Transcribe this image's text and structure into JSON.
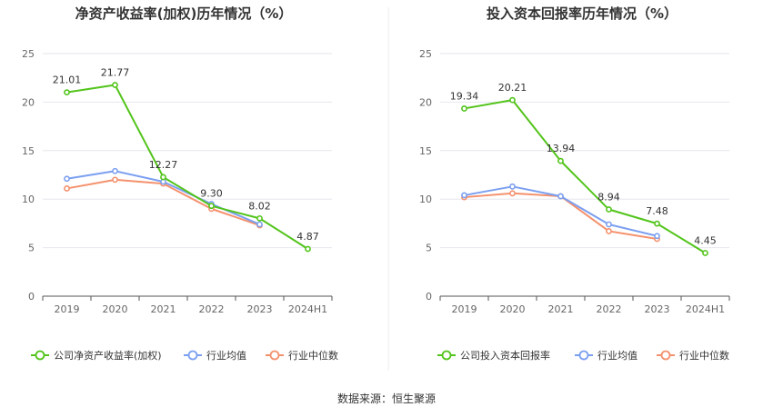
{
  "source": "数据来源：恒生聚源",
  "colors": {
    "company": "#52c41a",
    "avg": "#7b9ff0",
    "median": "#f4916d",
    "grid": "#e6e6ee",
    "axis": "#555555"
  },
  "chart_data": [
    {
      "type": "line",
      "title": "净资产收益率(加权)历年情况（%）",
      "categories": [
        "2019",
        "2020",
        "2021",
        "2022",
        "2023",
        "2024H1"
      ],
      "ylim": [
        0,
        25
      ],
      "yticks": [
        "0",
        "5",
        "10",
        "15",
        "20",
        "25"
      ],
      "grid": true,
      "legend_position": "bottom",
      "series": [
        {
          "name": "公司净资产收益率(加权)",
          "values": [
            21.01,
            21.77,
            12.27,
            9.3,
            8.02,
            4.87
          ],
          "labels": [
            "21.01",
            "21.77",
            "12.27",
            "9.30",
            "8.02",
            "4.87"
          ]
        },
        {
          "name": "行业均值",
          "values": [
            12.1,
            12.9,
            11.8,
            9.5,
            7.4,
            null
          ]
        },
        {
          "name": "行业中位数",
          "values": [
            11.1,
            12.0,
            11.6,
            9.0,
            7.3,
            null
          ]
        }
      ]
    },
    {
      "type": "line",
      "title": "投入资本回报率历年情况（%）",
      "categories": [
        "2019",
        "2020",
        "2021",
        "2022",
        "2023",
        "2024H1"
      ],
      "ylim": [
        0,
        25
      ],
      "yticks": [
        "0",
        "5",
        "10",
        "15",
        "20",
        "25"
      ],
      "grid": true,
      "legend_position": "bottom",
      "series": [
        {
          "name": "公司投入资本回报率",
          "values": [
            19.34,
            20.21,
            13.94,
            8.94,
            7.48,
            4.45
          ],
          "labels": [
            "19.34",
            "20.21",
            "13.94",
            "8.94",
            "7.48",
            "4.45"
          ]
        },
        {
          "name": "行业均值",
          "values": [
            10.4,
            11.3,
            10.3,
            7.4,
            6.2,
            null
          ]
        },
        {
          "name": "行业中位数",
          "values": [
            10.2,
            10.6,
            10.3,
            6.7,
            5.9,
            null
          ]
        }
      ]
    }
  ]
}
